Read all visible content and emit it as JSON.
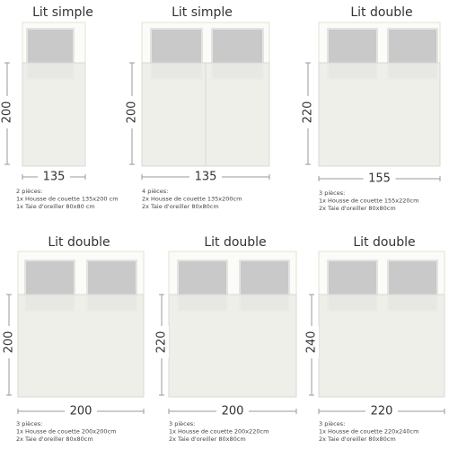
{
  "panels": [
    {
      "title": "Lit simple",
      "height": "200",
      "width": "135",
      "lines": [
        "2 pièces:",
        "1x Housse de couette 135x200 cm",
        "1x Taie d'oreiller 80x80 cm"
      ]
    },
    {
      "title": "Lit simple",
      "height": "200",
      "width": "135",
      "lines": [
        "4 pièces:",
        "2x Housse de couette 135x200cm",
        "2x Taie d'oreiller 80x80cm"
      ]
    },
    {
      "title": "Lit double",
      "height": "220",
      "width": "155",
      "lines": [
        "3 pièces:",
        "1x Housse de couette 155x220cm",
        "2x Taie d'oreiller 80x80cm"
      ]
    },
    {
      "title": "Lit double",
      "height": "200",
      "width": "200",
      "lines": [
        "3 pièces:",
        "1x Housse de couette 200x200cm",
        "2x Taie d'oreiller 80x80cm"
      ]
    },
    {
      "title": "Lit double",
      "height": "220",
      "width": "200",
      "lines": [
        "3 pièces:",
        "1x Housse de couette 200x220cm",
        "2x Taie d'oreiller 80x80cm"
      ]
    },
    {
      "title": "Lit double",
      "height": "240",
      "width": "220",
      "lines": [
        "3 pièces:",
        "1x Housse de couette 220x240cm",
        "2x Taie d'oreiller 80x80cm"
      ]
    }
  ]
}
